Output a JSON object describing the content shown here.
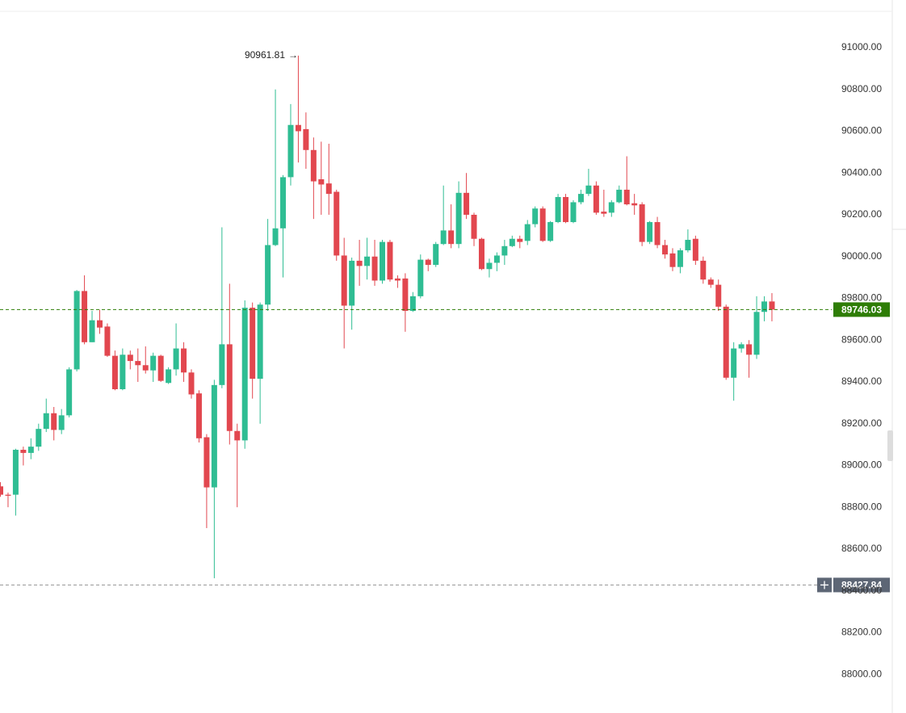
{
  "chart_data": {
    "type": "candlestick",
    "up_color": "#2fbd93",
    "down_color": "#e2474f",
    "ylim": [
      87815,
      91174
    ],
    "yticks": [
      {
        "value": 88000,
        "label": "88000.00"
      },
      {
        "value": 88200,
        "label": "88200.00"
      },
      {
        "value": 88400,
        "label": "88400.00"
      },
      {
        "value": 88600,
        "label": "88600.00"
      },
      {
        "value": 88800,
        "label": "88800.00"
      },
      {
        "value": 89000,
        "label": "89000.00"
      },
      {
        "value": 89200,
        "label": "89200.00"
      },
      {
        "value": 89400,
        "label": "89400.00"
      },
      {
        "value": 89600,
        "label": "89600.00"
      },
      {
        "value": 89800,
        "label": "89800.00"
      },
      {
        "value": 90000,
        "label": "90000.00"
      },
      {
        "value": 90200,
        "label": "90200.00"
      },
      {
        "value": 90400,
        "label": "90400.00"
      },
      {
        "value": 90600,
        "label": "90600.00"
      },
      {
        "value": 90800,
        "label": "90800.00"
      },
      {
        "value": 91000,
        "label": "91000.00"
      }
    ],
    "high_annotation": 90961.81,
    "last_price": 89746.03,
    "last_price_color": "#2e7d06",
    "crosshair_price": 88427.84,
    "open": [
      88900,
      88860,
      88860,
      89075,
      89060,
      89090,
      89175,
      89250,
      89170,
      89240,
      89460,
      89835,
      89590,
      89695,
      89665,
      89525,
      89365,
      89530,
      89500,
      89480,
      89455,
      89525,
      89395,
      89460,
      89560,
      89445,
      89345,
      89135,
      88895,
      89385,
      89580,
      89165,
      89120,
      89755,
      89415,
      89770,
      90055,
      90135,
      90380,
      90630,
      90610,
      90510,
      90370,
      90350,
      90310,
      90005,
      89765,
      89980,
      89955,
      90000,
      89885,
      90070,
      89895,
      89895,
      89740,
      89810,
      89985,
      89960,
      90060,
      90125,
      90060,
      90305,
      90200,
      90085,
      89940,
      89970,
      90005,
      90050,
      90085,
      90075,
      90155,
      90230,
      90075,
      90165,
      90285,
      90165,
      90260,
      90300,
      90340,
      90215,
      90210,
      90260,
      90320,
      90255,
      90250,
      90070,
      90165,
      90055,
      90015,
      89950,
      90030,
      90085,
      89980,
      89890,
      89865,
      89760,
      89420,
      89560,
      89580,
      89530,
      89735,
      89785
    ],
    "high": [
      88920,
      88870,
      89080,
      89090,
      89130,
      89200,
      89320,
      89280,
      89270,
      89470,
      89840,
      89910,
      89740,
      89745,
      89680,
      89550,
      89560,
      89550,
      89560,
      89570,
      89540,
      89530,
      89470,
      89680,
      89590,
      89460,
      89360,
      89150,
      89410,
      90140,
      89870,
      89200,
      89790,
      89780,
      89780,
      90180,
      90800,
      90390,
      90730,
      90961.81,
      90690,
      90570,
      90550,
      90540,
      90320,
      90090,
      89995,
      90080,
      90090,
      90080,
      90080,
      90080,
      89910,
      89920,
      89830,
      90010,
      89990,
      90070,
      90340,
      90250,
      90360,
      90400,
      90210,
      90090,
      89990,
      90020,
      90080,
      90100,
      90100,
      90175,
      90240,
      90240,
      90170,
      90300,
      90300,
      90270,
      90320,
      90420,
      90360,
      90320,
      90270,
      90340,
      90480,
      90300,
      90260,
      90170,
      90190,
      90080,
      90040,
      90040,
      90130,
      90100,
      90000,
      89900,
      89890,
      89770,
      89590,
      89590,
      89600,
      89810,
      89810,
      89825
    ],
    "low": [
      88850,
      88800,
      88760,
      89000,
      89030,
      89070,
      89160,
      89120,
      89150,
      89230,
      89450,
      89580,
      89590,
      89630,
      89520,
      89360,
      89360,
      89460,
      89400,
      89440,
      89400,
      89400,
      89390,
      89430,
      89400,
      89320,
      89110,
      88700,
      88460,
      89370,
      89100,
      88800,
      89080,
      89320,
      89200,
      89740,
      90050,
      89900,
      90340,
      90450,
      90420,
      90180,
      90200,
      90200,
      89980,
      89560,
      89650,
      89860,
      89890,
      89860,
      89870,
      89880,
      89850,
      89640,
      89735,
      89800,
      89930,
      89950,
      90055,
      90040,
      90040,
      90180,
      90050,
      89935,
      89900,
      89930,
      89960,
      90045,
      90040,
      90055,
      90140,
      90070,
      90070,
      90160,
      90160,
      90160,
      90250,
      90290,
      90200,
      90190,
      90190,
      90255,
      90245,
      90200,
      90050,
      90060,
      90040,
      89990,
      89930,
      89920,
      90020,
      89960,
      89870,
      89850,
      89740,
      89410,
      89310,
      89540,
      89420,
      89510,
      89690,
      89690
    ],
    "close": [
      88860,
      88855,
      89075,
      89060,
      89090,
      89175,
      89250,
      89170,
      89240,
      89460,
      89835,
      89590,
      89695,
      89660,
      89525,
      89365,
      89530,
      89500,
      89480,
      89455,
      89525,
      89405,
      89460,
      89560,
      89445,
      89340,
      89130,
      88895,
      89385,
      89580,
      89165,
      89120,
      89755,
      89415,
      89770,
      90055,
      90135,
      90380,
      90630,
      90600,
      90510,
      90360,
      90345,
      90300,
      90005,
      89765,
      89980,
      89955,
      90000,
      89885,
      90070,
      89890,
      89885,
      89740,
      89810,
      89985,
      89960,
      90060,
      90125,
      90060,
      90305,
      90200,
      90085,
      89940,
      89970,
      90005,
      90050,
      90085,
      90070,
      90155,
      90230,
      90075,
      90165,
      90285,
      90165,
      90260,
      90300,
      90340,
      90210,
      90205,
      90260,
      90320,
      90250,
      90245,
      90070,
      90165,
      90055,
      90010,
      89950,
      90030,
      90080,
      89980,
      89890,
      89865,
      89760,
      89420,
      89560,
      89580,
      89530,
      89735,
      89785,
      89746.03
    ]
  }
}
